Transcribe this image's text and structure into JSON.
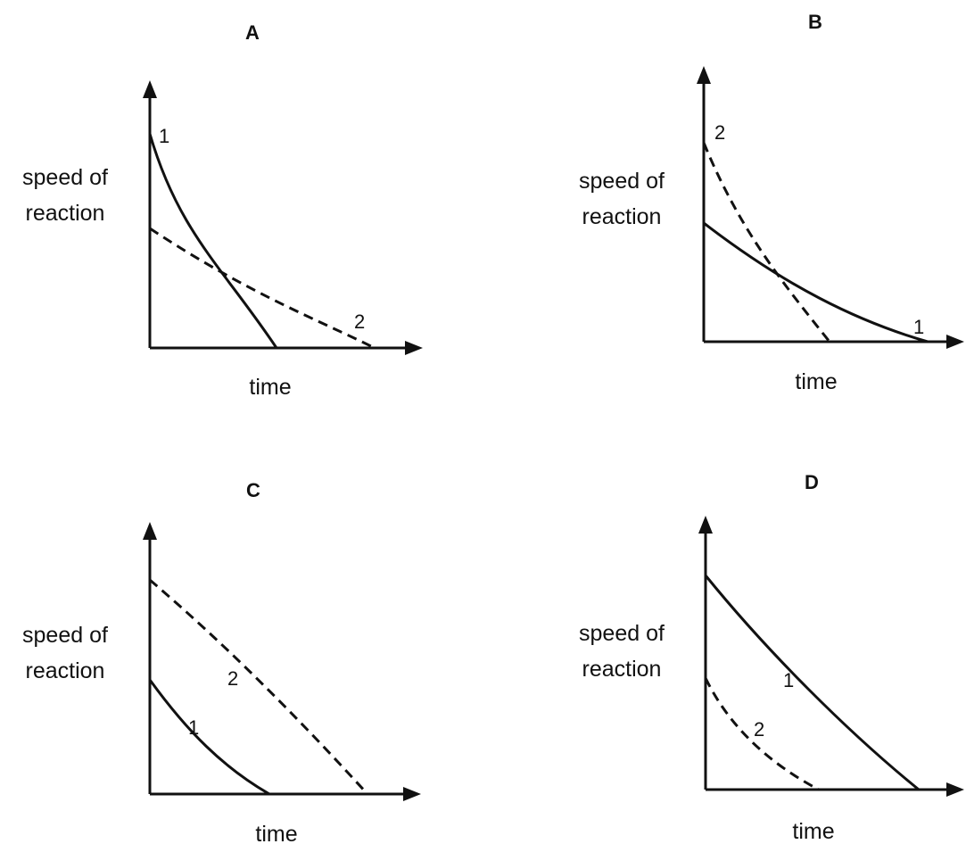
{
  "panels": [
    {
      "letter": "A",
      "ylabel_line1": "speed of",
      "ylabel_line2": "reaction",
      "xlabel": "time",
      "curve_labels": [
        "1",
        "2"
      ]
    },
    {
      "letter": "B",
      "ylabel_line1": "speed of",
      "ylabel_line2": "reaction",
      "xlabel": "time",
      "curve_labels": [
        "1",
        "2"
      ]
    },
    {
      "letter": "C",
      "ylabel_line1": "speed of",
      "ylabel_line2": "reaction",
      "xlabel": "time",
      "curve_labels": [
        "1",
        "2"
      ]
    },
    {
      "letter": "D",
      "ylabel_line1": "speed of",
      "ylabel_line2": "reaction",
      "xlabel": "time",
      "curve_labels": [
        "1",
        "2"
      ]
    }
  ]
}
